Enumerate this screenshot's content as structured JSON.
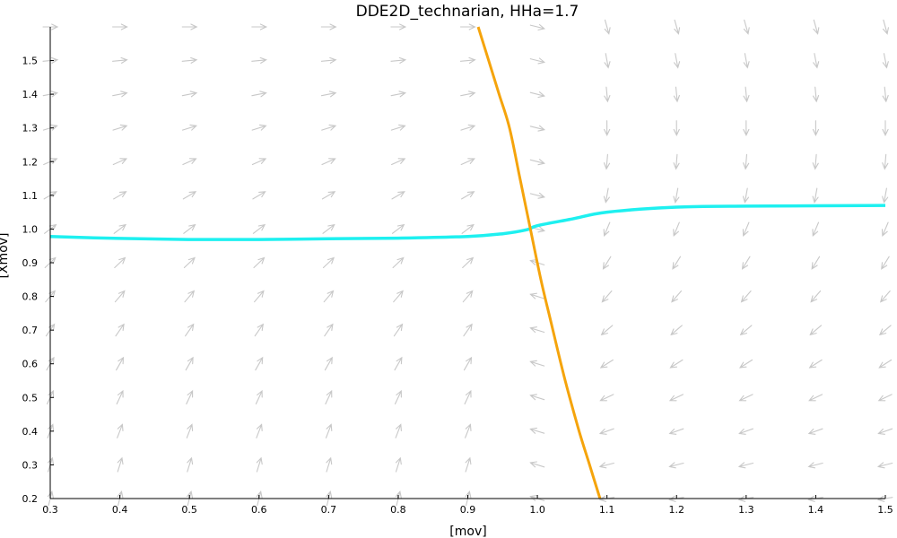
{
  "chart_data": {
    "type": "line",
    "title": "DDE2D_technarian, HHa=1.7",
    "xlabel": "[mov]",
    "ylabel": "[Xmov]",
    "xlim": [
      0.3,
      1.5
    ],
    "ylim": [
      0.2,
      1.6
    ],
    "xticks": [
      "0.3",
      "0.4",
      "0.5",
      "0.6",
      "0.7",
      "0.8",
      "0.9",
      "1.0",
      "1.1",
      "1.2",
      "1.3",
      "1.4",
      "1.5"
    ],
    "yticks": [
      "0.2",
      "0.3",
      "0.4",
      "0.5",
      "0.6",
      "0.7",
      "0.8",
      "0.9",
      "1.0",
      "1.1",
      "1.2",
      "1.3",
      "1.4",
      "1.5"
    ],
    "grid": false,
    "colors": {
      "cyan_curve": "#1ef0f0",
      "orange_curve": "#f5a40c",
      "arrows": "#c8c8c8"
    },
    "series": [
      {
        "x": [
          0.3,
          0.4,
          0.5,
          0.6,
          0.7,
          0.8,
          0.9,
          0.95,
          0.985,
          1.0,
          1.05,
          1.1,
          1.2,
          1.3,
          1.4,
          1.5
        ],
        "y": [
          0.978,
          0.972,
          0.969,
          0.969,
          0.971,
          0.973,
          0.978,
          0.986,
          0.998,
          1.01,
          1.03,
          1.05,
          1.065,
          1.068,
          1.069,
          1.07
        ]
      },
      {
        "x": [
          0.915,
          0.93,
          0.945,
          0.96,
          0.975,
          0.99,
          1.005,
          1.02,
          1.04,
          1.06,
          1.075,
          1.09
        ],
        "y": [
          1.6,
          1.5,
          1.4,
          1.3,
          1.15,
          1.0,
          0.85,
          0.72,
          0.55,
          0.4,
          0.3,
          0.2
        ]
      }
    ]
  }
}
